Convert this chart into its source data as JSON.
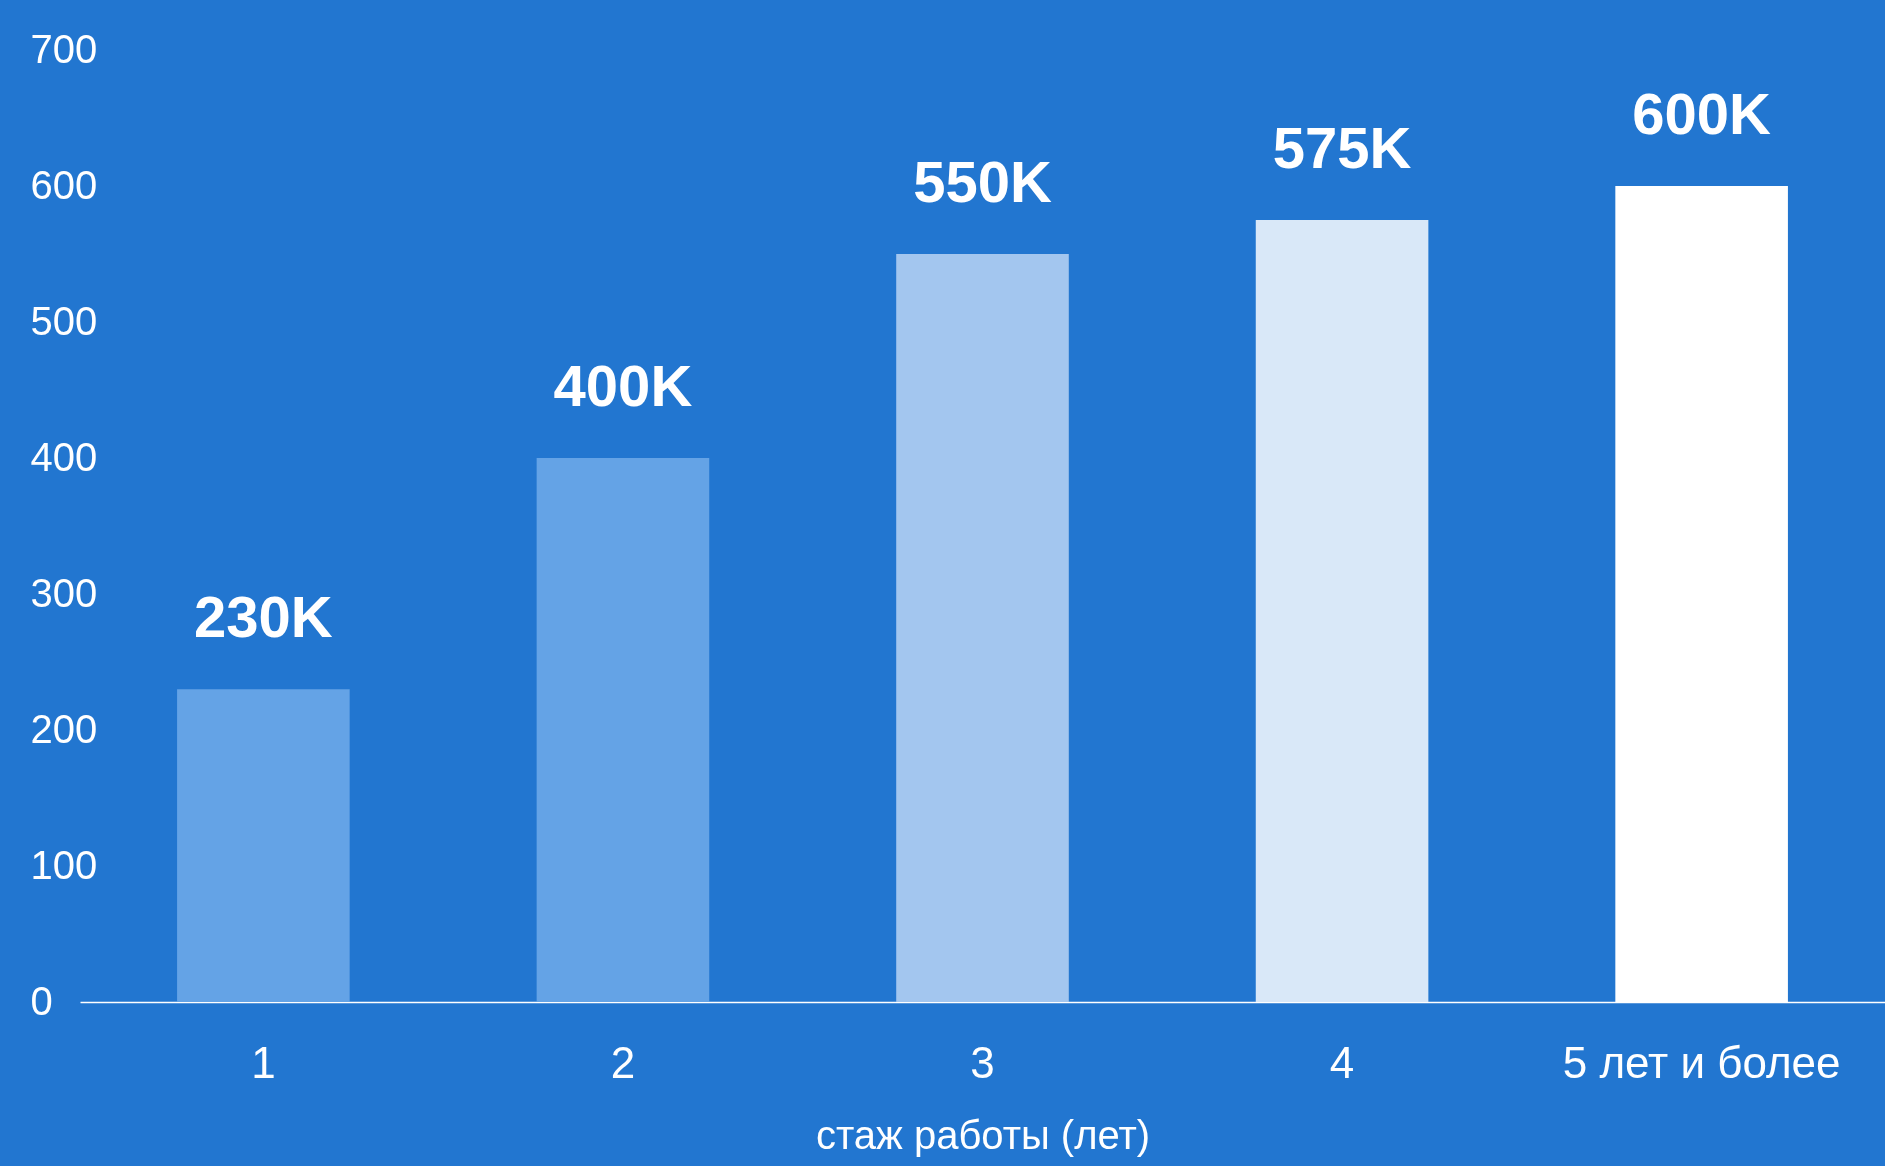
{
  "chart_data": {
    "type": "bar",
    "xlabel": "стаж работы (лет)",
    "categories": [
      "1",
      "2",
      "3",
      "4",
      "5 лет и более"
    ],
    "values": [
      230,
      400,
      550,
      575,
      600
    ],
    "colors": [
      "#64a3e6",
      "#64a3e6",
      "#a3c6ef",
      "#d9e8f8",
      "#ffffff"
    ],
    "value_labels": [
      "230K",
      "400K",
      "550K",
      "575K",
      "600K"
    ],
    "ylim": [
      0,
      700
    ],
    "yticks": [
      0,
      100,
      200,
      300,
      400,
      500,
      600,
      700
    ],
    "grid": false
  }
}
